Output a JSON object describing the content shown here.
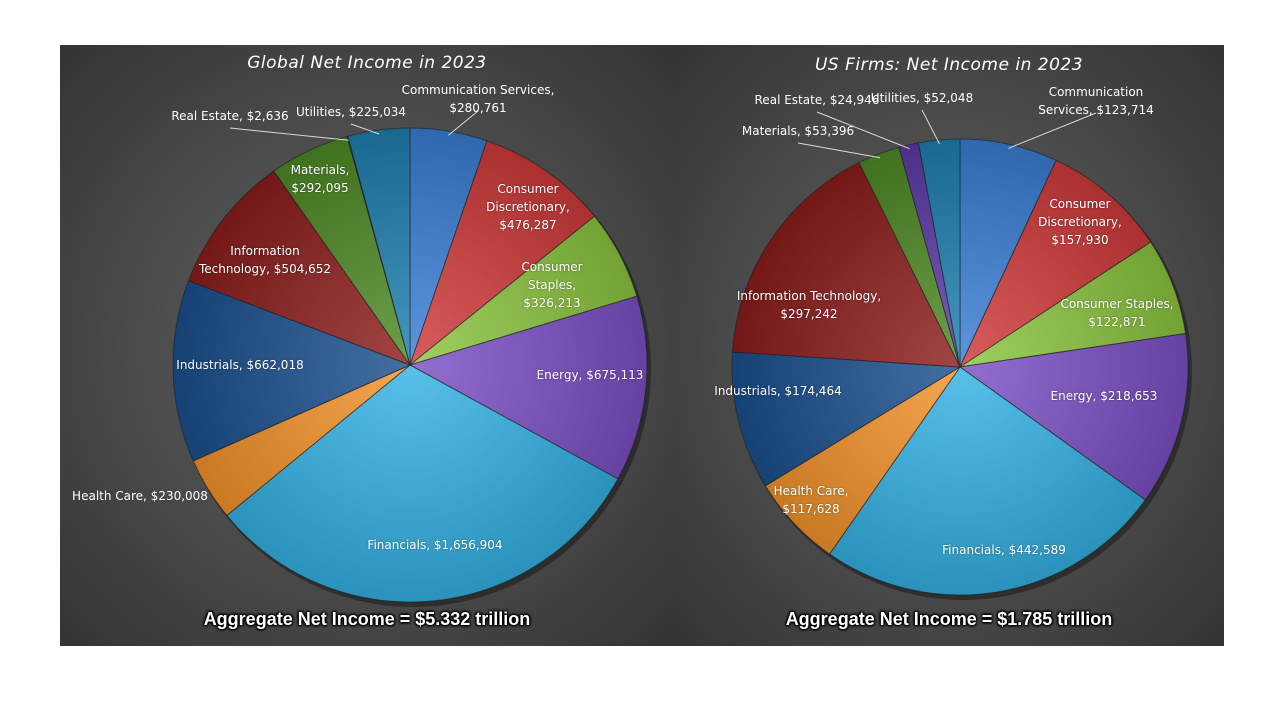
{
  "chart_data": [
    {
      "type": "pie",
      "title": "Global Net Income in 2023",
      "footer": "Aggregate Net Income =  $5.332 trillion",
      "slices": [
        {
          "key": "cs",
          "lines": [
            "Communication Services,",
            "$280,761"
          ],
          "value": 280761,
          "color": "#3a7fd6",
          "placement": "outside"
        },
        {
          "key": "cd",
          "lines": [
            "Consumer",
            "Discretionary,",
            "$476,287"
          ],
          "value": 476287,
          "color": "#d13a3a",
          "placement": "inside"
        },
        {
          "key": "stp",
          "lines": [
            "Consumer",
            "Staples,",
            "$326,213"
          ],
          "value": 326213,
          "color": "#8cc63f",
          "placement": "inside"
        },
        {
          "key": "en",
          "lines": [
            "Energy, $675,113"
          ],
          "value": 675113,
          "color": "#7b4fc4",
          "placement": "inside"
        },
        {
          "key": "fin",
          "lines": [
            "Financials, $1,656,904"
          ],
          "value": 1656904,
          "color": "#34b3e4",
          "placement": "inside"
        },
        {
          "key": "hc",
          "lines": [
            "Health Care, $230,008"
          ],
          "value": 230008,
          "color": "#f5932a",
          "placement": "outside"
        },
        {
          "key": "ind",
          "lines": [
            "Industrials, $662,018"
          ],
          "value": 662018,
          "color": "#1b4f8f",
          "placement": "inside"
        },
        {
          "key": "it",
          "lines": [
            "Information",
            "Technology, $504,652"
          ],
          "value": 504652,
          "color": "#8c1c1c",
          "placement": "inside"
        },
        {
          "key": "mat",
          "lines": [
            "Materials,",
            "$292,095"
          ],
          "value": 292095,
          "color": "#4e8a24",
          "placement": "inside"
        },
        {
          "key": "re",
          "lines": [
            "Real Estate, $2,636"
          ],
          "value": 2636,
          "color": "#5b3aa8",
          "placement": "outside"
        },
        {
          "key": "ut",
          "lines": [
            "Utilities, $225,034"
          ],
          "value": 225034,
          "color": "#1f7fb0",
          "placement": "outside"
        }
      ]
    },
    {
      "type": "pie",
      "title": "US Firms: Net Income in 2023",
      "footer": "Aggregate Net Income =  $1.785 trillion",
      "slices": [
        {
          "key": "cs",
          "lines": [
            "Communication",
            "Services, $123,714"
          ],
          "value": 123714,
          "color": "#3a7fd6",
          "placement": "outside"
        },
        {
          "key": "cd",
          "lines": [
            "Consumer",
            "Discretionary,",
            "$157,930"
          ],
          "value": 157930,
          "color": "#d13a3a",
          "placement": "inside"
        },
        {
          "key": "stp",
          "lines": [
            "Consumer Staples,",
            "$122,871"
          ],
          "value": 122871,
          "color": "#8cc63f",
          "placement": "inside"
        },
        {
          "key": "en",
          "lines": [
            "Energy, $218,653"
          ],
          "value": 218653,
          "color": "#7b4fc4",
          "placement": "inside"
        },
        {
          "key": "fin",
          "lines": [
            "Financials, $442,589"
          ],
          "value": 442589,
          "color": "#34b3e4",
          "placement": "inside"
        },
        {
          "key": "hc",
          "lines": [
            "Health Care,",
            "$117,628"
          ],
          "value": 117628,
          "color": "#f5932a",
          "placement": "inside"
        },
        {
          "key": "ind",
          "lines": [
            "Industrials, $174,464"
          ],
          "value": 174464,
          "color": "#1b4f8f",
          "placement": "inside"
        },
        {
          "key": "it",
          "lines": [
            "Information Technology,",
            "$297,242"
          ],
          "value": 297242,
          "color": "#8c1c1c",
          "placement": "inside"
        },
        {
          "key": "mat",
          "lines": [
            "Materials, $53,396"
          ],
          "value": 53396,
          "color": "#4e8a24",
          "placement": "outside"
        },
        {
          "key": "re",
          "lines": [
            "Real Estate, $24,946"
          ],
          "value": 24946,
          "color": "#5b3aa8",
          "placement": "outside"
        },
        {
          "key": "ut",
          "lines": [
            "Utilities, $52,048"
          ],
          "value": 52048,
          "color": "#1f7fb0",
          "placement": "outside"
        }
      ]
    }
  ]
}
